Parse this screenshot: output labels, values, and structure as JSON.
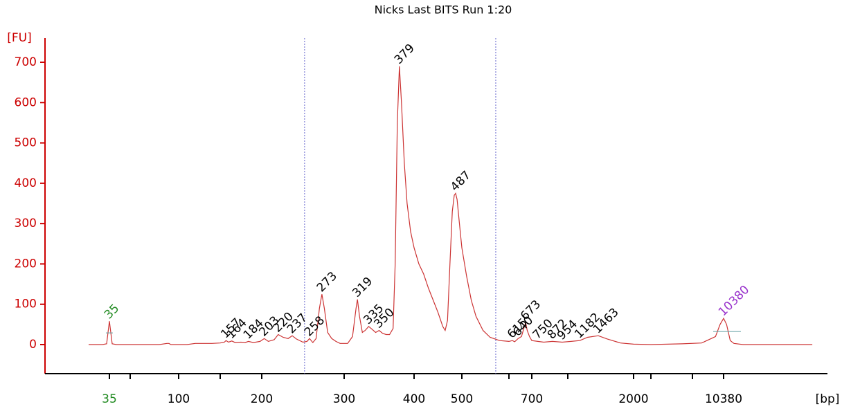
{
  "chart_data": {
    "type": "line",
    "title": "Nicks Last BITS Run 1:20",
    "y_label": "[FU]",
    "x_label": "[bp]",
    "ylim": [
      -72,
      760
    ],
    "yticks": [
      0,
      100,
      200,
      300,
      400,
      500,
      600,
      700
    ],
    "axis_color": "#cc0000",
    "xticks": [
      35,
      {
        "value": 50,
        "label": null
      },
      100,
      {
        "value": 150,
        "label": null
      },
      200,
      300,
      400,
      500,
      {
        "value": 600,
        "label": null
      },
      700,
      {
        "value": 1000,
        "label": null
      },
      2000,
      {
        "value": 3000,
        "label": null
      },
      {
        "value": 7000,
        "label": null
      },
      10380
    ],
    "xtick_colors": {
      "0": "#228b22"
    },
    "region_bp": [
      252,
      572
    ],
    "series": [
      {
        "color": "#cc3333",
        "x": [
          20,
          30,
          33,
          34,
          35,
          36,
          37,
          40,
          80,
          88,
          90,
          92,
          110,
          120,
          140,
          150,
          155,
          157,
          160,
          164,
          168,
          175,
          180,
          184,
          190,
          198,
          203,
          208,
          215,
          220,
          226,
          232,
          237,
          242,
          250,
          255,
          258,
          262,
          266,
          270,
          273,
          276,
          280,
          285,
          290,
          295,
          305,
          312,
          317,
          319,
          322,
          326,
          330,
          335,
          340,
          345,
          350,
          355,
          360,
          365,
          370,
          373,
          376,
          379,
          382,
          386,
          390,
          395,
          400,
          410,
          420,
          430,
          440,
          450,
          460,
          465,
          470,
          475,
          480,
          484,
          487,
          490,
          495,
          500,
          510,
          520,
          530,
          545,
          560,
          580,
          600,
          615,
          625,
          640,
          655,
          665,
          673,
          680,
          690,
          700,
          750,
          800,
          872,
          954,
          1050,
          1182,
          1300,
          1463,
          1600,
          1800,
          2000,
          3000,
          6000,
          8000,
          9500,
          10000,
          10380,
          10700,
          11100,
          11500,
          12500,
          20000
        ],
        "values": [
          0,
          0,
          2,
          30,
          58,
          30,
          2,
          0,
          0,
          3,
          3,
          0,
          0,
          3,
          3,
          4,
          6,
          10,
          6,
          9,
          5,
          6,
          5,
          8,
          5,
          8,
          15,
          8,
          12,
          25,
          18,
          15,
          22,
          14,
          6,
          8,
          15,
          5,
          15,
          90,
          125,
          90,
          30,
          15,
          8,
          3,
          3,
          20,
          90,
          112,
          70,
          30,
          35,
          45,
          38,
          30,
          35,
          28,
          25,
          25,
          40,
          200,
          550,
          690,
          600,
          450,
          350,
          280,
          240,
          200,
          175,
          140,
          110,
          80,
          45,
          35,
          60,
          200,
          330,
          370,
          375,
          360,
          300,
          240,
          170,
          110,
          70,
          35,
          18,
          10,
          8,
          10,
          7,
          15,
          20,
          40,
          55,
          35,
          20,
          10,
          8,
          6,
          8,
          6,
          8,
          10,
          18,
          22,
          14,
          4,
          1,
          0,
          2,
          4,
          20,
          50,
          65,
          50,
          10,
          3,
          0,
          0
        ]
      }
    ],
    "peaks": [
      157,
      164,
      184,
      203,
      220,
      237,
      258,
      273,
      319,
      335,
      350,
      379,
      487,
      615,
      640,
      673,
      750,
      872,
      954,
      1182,
      1463
    ],
    "markers": [
      {
        "bp": 35,
        "color": "#228b22"
      },
      {
        "bp": 10380,
        "color": "#9932cc"
      }
    ]
  }
}
